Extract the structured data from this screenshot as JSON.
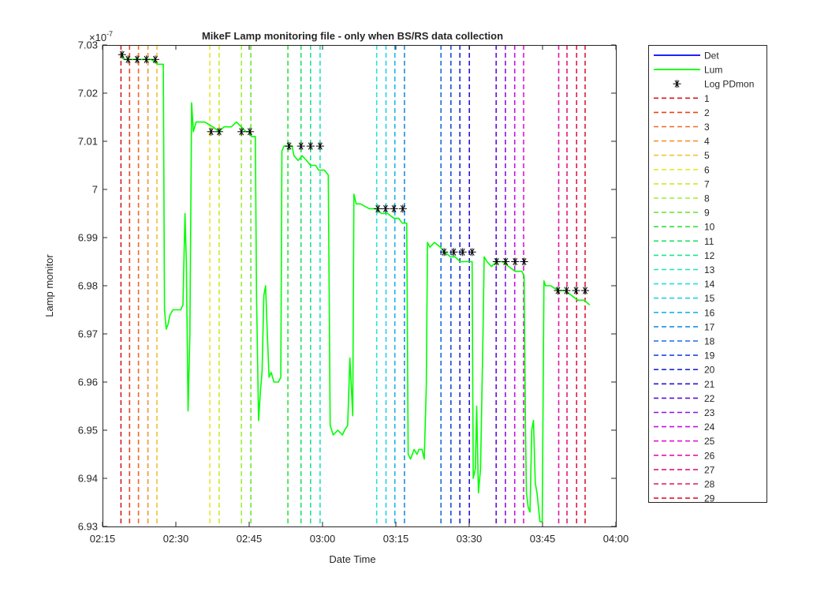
{
  "chart_data": {
    "type": "line",
    "title": "MikeF Lamp monitoring file - only when BS/RS data collection",
    "xlabel": "Date Time",
    "ylabel": "Lamp monitor",
    "y_exponent_label": "×10",
    "y_exponent": "-7",
    "x_range_minutes": [
      "02:15",
      "04:00"
    ],
    "xlim": [
      "02:15",
      "04:00"
    ],
    "ylim": [
      6.93,
      7.03
    ],
    "grid": false,
    "legend_position": "outside-right",
    "x_ticks": [
      "02:15",
      "02:30",
      "02:45",
      "03:00",
      "03:15",
      "03:30",
      "03:45",
      "04:00"
    ],
    "y_ticks": [
      "6.93",
      "6.94",
      "6.95",
      "6.96",
      "6.97",
      "6.98",
      "6.99",
      "7",
      "7.01",
      "7.02",
      "7.03"
    ],
    "x_tick_values": [
      "02:15",
      "02:30",
      "02:45",
      "03:00",
      "03:15",
      "03:30",
      "03:45",
      "04:00"
    ],
    "y_tick_values": [
      6.93,
      6.94,
      6.95,
      6.96,
      6.97,
      6.98,
      6.99,
      7.0,
      7.01,
      7.02,
      7.03
    ],
    "series": [
      {
        "name": "Det",
        "color": "#0000ff",
        "points": []
      },
      {
        "name": "Lum",
        "color": "#00ff00",
        "points": [
          [
            "02:18:46",
            7.028
          ],
          [
            "02:19:24",
            7.027
          ],
          [
            "02:21:23",
            7.027
          ],
          [
            "02:23:21",
            7.027
          ],
          [
            "02:24:59",
            7.027
          ],
          [
            "02:26:20",
            7.026
          ],
          [
            "02:27:26",
            7.026
          ],
          [
            "02:27:41",
            6.975
          ],
          [
            "02:28:02",
            6.971
          ],
          [
            "02:28:24",
            6.972
          ],
          [
            "02:28:49",
            6.974
          ],
          [
            "02:29:24",
            6.975
          ],
          [
            "02:30:18",
            6.975
          ],
          [
            "02:30:59",
            6.975
          ],
          [
            "02:31:27",
            6.976
          ],
          [
            "02:31:52",
            6.995
          ],
          [
            "02:32:09",
            6.985
          ],
          [
            "02:32:30",
            6.954
          ],
          [
            "02:32:52",
            6.97
          ],
          [
            "02:33:14",
            7.018
          ],
          [
            "02:33:35",
            7.012
          ],
          [
            "02:34:09",
            7.014
          ],
          [
            "02:35:54",
            7.014
          ],
          [
            "02:37:33",
            7.013
          ],
          [
            "02:38:51",
            7.012
          ],
          [
            "02:39:51",
            7.013
          ],
          [
            "02:41:21",
            7.013
          ],
          [
            "02:42:23",
            7.014
          ],
          [
            "02:43:23",
            7.013
          ],
          [
            "02:44:19",
            7.012
          ],
          [
            "02:45:09",
            7.012
          ],
          [
            "02:45:30",
            7.011
          ],
          [
            "02:46:15",
            7.011
          ],
          [
            "02:46:30",
            6.978
          ],
          [
            "02:46:55",
            6.952
          ],
          [
            "02:47:17",
            6.958
          ],
          [
            "02:47:38",
            6.962
          ],
          [
            "02:48:00",
            6.978
          ],
          [
            "02:48:21",
            6.98
          ],
          [
            "02:48:43",
            6.97
          ],
          [
            "02:49:04",
            6.961
          ],
          [
            "02:49:30",
            6.962
          ],
          [
            "02:50:04",
            6.96
          ],
          [
            "02:50:59",
            6.96
          ],
          [
            "02:51:28",
            6.961
          ],
          [
            "02:51:42",
            7.008
          ],
          [
            "02:52:07",
            7.009
          ],
          [
            "02:52:43",
            7.009
          ],
          [
            "02:53:45",
            7.009
          ],
          [
            "02:54:11",
            7.007
          ],
          [
            "02:55:00",
            7.006
          ],
          [
            "02:55:50",
            7.007
          ],
          [
            "02:56:44",
            7.006
          ],
          [
            "02:57:33",
            7.005
          ],
          [
            "02:58:36",
            7.005
          ],
          [
            "02:59:12",
            7.004
          ],
          [
            "03:00:23",
            7.004
          ],
          [
            "03:01:11",
            7.003
          ],
          [
            "03:01:34",
            6.951
          ],
          [
            "03:02:12",
            6.949
          ],
          [
            "03:03:08",
            6.95
          ],
          [
            "03:04:05",
            6.949
          ],
          [
            "03:04:31",
            6.95
          ],
          [
            "03:05:09",
            6.951
          ],
          [
            "03:05:36",
            6.965
          ],
          [
            "03:05:50",
            6.96
          ],
          [
            "03:06:11",
            6.953
          ],
          [
            "03:06:25",
            6.999
          ],
          [
            "03:06:53",
            6.997
          ],
          [
            "03:07:45",
            6.997
          ],
          [
            "03:09:34",
            6.996
          ],
          [
            "03:10:50",
            6.996
          ],
          [
            "03:12:04",
            6.995
          ],
          [
            "03:13:19",
            6.995
          ],
          [
            "03:14:37",
            6.994
          ],
          [
            "03:15:35",
            6.994
          ],
          [
            "03:16:18",
            6.993
          ],
          [
            "03:17:14",
            6.993
          ],
          [
            "03:17:31",
            6.945
          ],
          [
            "03:18:00",
            6.944
          ],
          [
            "03:18:44",
            6.946
          ],
          [
            "03:19:19",
            6.945
          ],
          [
            "03:19:44",
            6.946
          ],
          [
            "03:20:21",
            6.946
          ],
          [
            "03:20:48",
            6.944
          ],
          [
            "03:21:14",
            6.959
          ],
          [
            "03:21:28",
            6.989
          ],
          [
            "03:21:58",
            6.988
          ],
          [
            "03:22:53",
            6.989
          ],
          [
            "03:24:07",
            6.988
          ],
          [
            "03:24:55",
            6.987
          ],
          [
            "03:26:12",
            6.986
          ],
          [
            "03:27:07",
            6.986
          ],
          [
            "03:28:11",
            6.985
          ],
          [
            "03:29:36",
            6.985
          ],
          [
            "03:30:36",
            6.985
          ],
          [
            "03:30:49",
            6.94
          ],
          [
            "03:31:15",
            6.942
          ],
          [
            "03:31:32",
            6.955
          ],
          [
            "03:31:53",
            6.937
          ],
          [
            "03:32:19",
            6.942
          ],
          [
            "03:32:49",
            6.97
          ],
          [
            "03:33:04",
            6.986
          ],
          [
            "03:33:38",
            6.985
          ],
          [
            "03:34:33",
            6.984
          ],
          [
            "03:35:37",
            6.985
          ],
          [
            "03:36:51",
            6.985
          ],
          [
            "03:38:04",
            6.984
          ],
          [
            "03:39:23",
            6.983
          ],
          [
            "03:40:46",
            6.983
          ],
          [
            "03:41:14",
            6.982
          ],
          [
            "03:41:30",
            6.951
          ],
          [
            "03:41:43",
            6.937
          ],
          [
            "03:42:04",
            6.934
          ],
          [
            "03:42:26",
            6.933
          ],
          [
            "03:42:47",
            6.95
          ],
          [
            "03:43:09",
            6.952
          ],
          [
            "03:43:31",
            6.939
          ],
          [
            "03:43:52",
            6.937
          ],
          [
            "03:44:28",
            6.931
          ],
          [
            "03:44:56",
            6.931
          ],
          [
            "03:45:17",
            6.981
          ],
          [
            "03:45:36",
            6.98
          ],
          [
            "03:46:41",
            6.98
          ],
          [
            "03:48:09",
            6.979
          ],
          [
            "03:49:36",
            6.979
          ],
          [
            "03:50:55",
            6.978
          ],
          [
            "03:52:14",
            6.977
          ],
          [
            "03:53:32",
            6.977
          ],
          [
            "03:54:39",
            6.976
          ]
        ]
      },
      {
        "name": "Log PDmon",
        "color": "#000000",
        "marker": "*",
        "points": [
          [
            "02:19:00",
            7.028
          ],
          [
            "02:20:13",
            7.027
          ],
          [
            "02:22:05",
            7.027
          ],
          [
            "02:23:58",
            7.027
          ],
          [
            "02:25:47",
            7.027
          ],
          [
            "02:37:13",
            7.012
          ],
          [
            "02:38:51",
            7.012
          ],
          [
            "02:43:25",
            7.012
          ],
          [
            "02:45:09",
            7.012
          ],
          [
            "02:53:09",
            7.009
          ],
          [
            "02:55:36",
            7.009
          ],
          [
            "02:57:33",
            7.009
          ],
          [
            "02:59:30",
            7.009
          ],
          [
            "03:11:19",
            6.996
          ],
          [
            "03:12:53",
            6.996
          ],
          [
            "03:14:37",
            6.996
          ],
          [
            "03:16:25",
            6.996
          ],
          [
            "03:24:52",
            6.987
          ],
          [
            "03:26:50",
            6.987
          ],
          [
            "03:28:40",
            6.987
          ],
          [
            "03:30:36",
            6.987
          ],
          [
            "03:35:37",
            6.985
          ],
          [
            "03:37:27",
            6.985
          ],
          [
            "03:39:23",
            6.985
          ],
          [
            "03:41:14",
            6.985
          ],
          [
            "03:48:09",
            6.979
          ],
          [
            "03:49:54",
            6.979
          ],
          [
            "03:51:51",
            6.979
          ],
          [
            "03:53:43",
            6.979
          ]
        ]
      }
    ],
    "markers": [
      {
        "name": "1",
        "time": "02:18:46",
        "color": "#d7191c"
      },
      {
        "name": "2",
        "time": "02:20:32",
        "color": "#e8451e"
      },
      {
        "name": "3",
        "time": "02:22:21",
        "color": "#ee6a22"
      },
      {
        "name": "4",
        "time": "02:24:17",
        "color": "#f29330"
      },
      {
        "name": "5",
        "time": "02:26:08",
        "color": "#f2c031"
      },
      {
        "name": "6",
        "time": "02:36:57",
        "color": "#e8e82a"
      },
      {
        "name": "7",
        "time": "02:38:51",
        "color": "#c8ec2d"
      },
      {
        "name": "8",
        "time": "02:43:25",
        "color": "#a0ec35"
      },
      {
        "name": "9",
        "time": "02:45:20",
        "color": "#6ee63a"
      },
      {
        "name": "10",
        "time": "02:52:55",
        "color": "#32e03e"
      },
      {
        "name": "11",
        "time": "02:55:36",
        "color": "#1fe066"
      },
      {
        "name": "12",
        "time": "02:57:33",
        "color": "#1fe28f"
      },
      {
        "name": "13",
        "time": "02:59:30",
        "color": "#20e4b8"
      },
      {
        "name": "14",
        "time": "03:11:05",
        "color": "#24e4dc"
      },
      {
        "name": "15",
        "time": "03:12:59",
        "color": "#20d2e9"
      },
      {
        "name": "16",
        "time": "03:14:47",
        "color": "#1bb3e8"
      },
      {
        "name": "17",
        "time": "03:16:45",
        "color": "#1a90e4"
      },
      {
        "name": "18",
        "time": "03:24:14",
        "color": "#1a6ee0"
      },
      {
        "name": "19",
        "time": "03:26:15",
        "color": "#1b4cdc"
      },
      {
        "name": "20",
        "time": "03:28:06",
        "color": "#1e2ad6"
      },
      {
        "name": "21",
        "time": "03:30:02",
        "color": "#2a14d2"
      },
      {
        "name": "22",
        "time": "03:35:31",
        "color": "#5a12d8"
      },
      {
        "name": "23",
        "time": "03:37:24",
        "color": "#8c12de"
      },
      {
        "name": "24",
        "time": "03:39:18",
        "color": "#c012e2"
      },
      {
        "name": "25",
        "time": "03:41:08",
        "color": "#e214d4"
      },
      {
        "name": "26",
        "time": "03:48:18",
        "color": "#e216a8"
      },
      {
        "name": "27",
        "time": "03:50:00",
        "color": "#e2187e"
      },
      {
        "name": "28",
        "time": "03:51:58",
        "color": "#e01a56"
      },
      {
        "name": "29",
        "time": "03:53:43",
        "color": "#de1b32"
      }
    ]
  }
}
